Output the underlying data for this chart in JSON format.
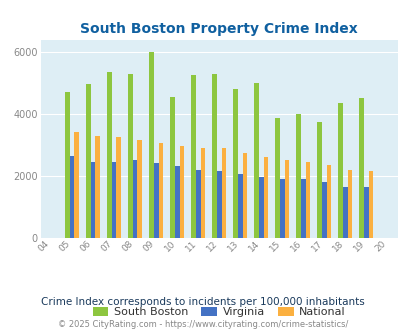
{
  "title": "South Boston Property Crime Index",
  "years": [
    2004,
    2005,
    2006,
    2007,
    2008,
    2009,
    2010,
    2011,
    2012,
    2013,
    2014,
    2015,
    2016,
    2017,
    2018,
    2019,
    2020
  ],
  "south_boston": [
    null,
    4700,
    4950,
    5350,
    5300,
    6000,
    4550,
    5250,
    5300,
    4800,
    5000,
    3850,
    4000,
    3750,
    4350,
    4500,
    null
  ],
  "virginia": [
    null,
    2650,
    2450,
    2450,
    2500,
    2400,
    2300,
    2200,
    2150,
    2050,
    1950,
    1900,
    1900,
    1800,
    1650,
    1650,
    null
  ],
  "national": [
    null,
    3400,
    3300,
    3250,
    3150,
    3050,
    2950,
    2900,
    2900,
    2750,
    2600,
    2500,
    2450,
    2350,
    2200,
    2150,
    null
  ],
  "colors": {
    "south_boston": "#8dc63f",
    "virginia": "#4472c4",
    "national": "#fbb040"
  },
  "bg_color": "#deeef5",
  "ylim": [
    0,
    6400
  ],
  "yticks": [
    0,
    2000,
    4000,
    6000
  ],
  "subtitle": "Crime Index corresponds to incidents per 100,000 inhabitants",
  "footer": "© 2025 CityRating.com - https://www.cityrating.com/crime-statistics/",
  "legend_labels": [
    "South Boston",
    "Virginia",
    "National"
  ],
  "title_color": "#1060a0",
  "tick_color": "#888888",
  "subtitle_color": "#1a3a5c",
  "footer_color": "#888888",
  "footer_link_color": "#4080c0"
}
